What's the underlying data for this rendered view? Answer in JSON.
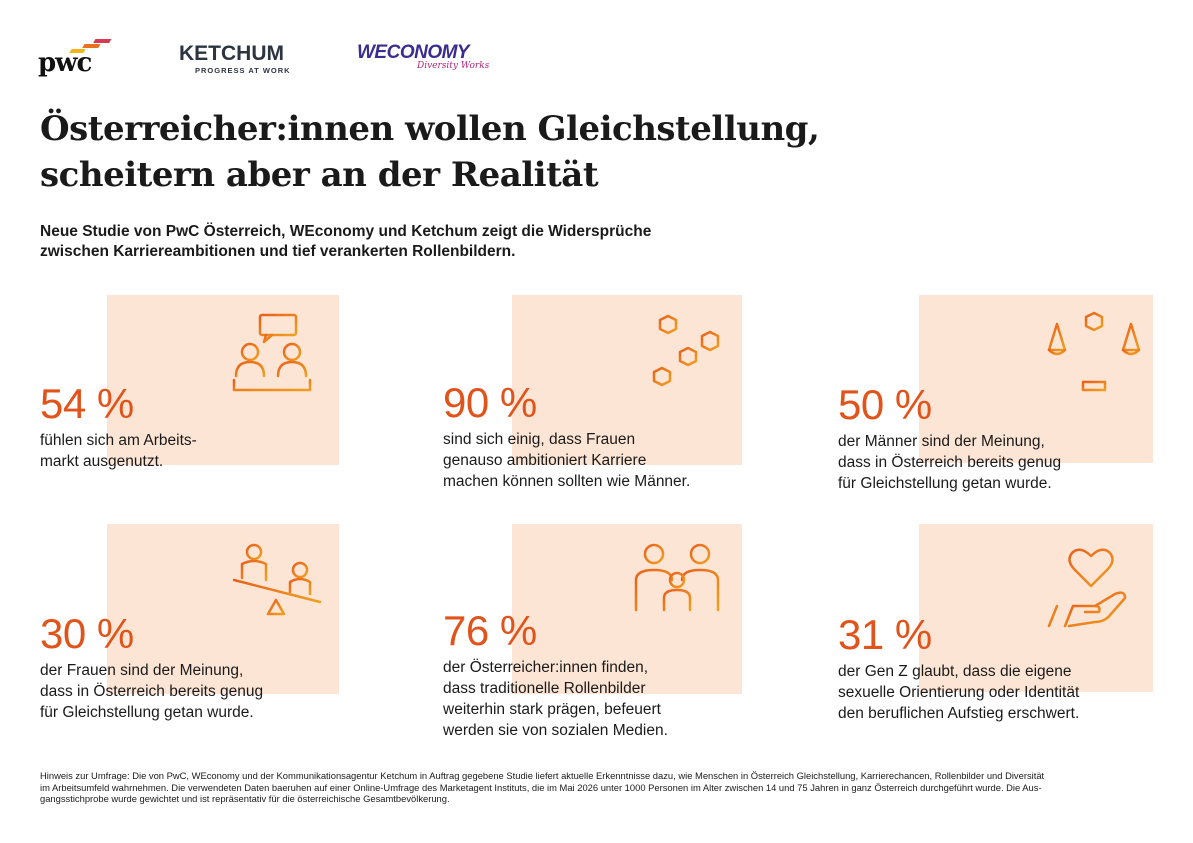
{
  "logos": {
    "pwc": {
      "text": "pwc"
    },
    "ketchum": {
      "text": "KETCHUM",
      "tagline": "PROGRESS AT WORK"
    },
    "weconomy": {
      "text": "WECONOMY",
      "tagline": "Diversity Works"
    }
  },
  "title": {
    "line1": "Österreicher:innen wollen Gleichstellung,",
    "line2": "scheitern aber an der Realität"
  },
  "subtitle": {
    "line1": "Neue Studie von PwC Österreich, WEconomy und Ketchum zeigt die Widersprüche",
    "line2": "zwischen Karriereambitionen und tief verankerten Rollenbildern."
  },
  "stats": [
    {
      "value": "54 %",
      "lines": [
        "fühlen sich am Arbeits-",
        "markt ausgenutzt."
      ],
      "icon": "meeting-icon"
    },
    {
      "value": "90 %",
      "lines": [
        "sind sich einig, dass Frauen",
        "genauso ambitioniert Karriere",
        "machen können sollten wie Männer."
      ],
      "icon": "hexagon-network-icon"
    },
    {
      "value": "50 %",
      "lines": [
        "der Männer sind der Meinung,",
        "dass in Österreich bereits genug",
        "für Gleichstellung getan wurde."
      ],
      "icon": "balance-scale-icon"
    },
    {
      "value": "30 %",
      "lines": [
        "der Frauen sind der Meinung,",
        "dass in Österreich bereits genug",
        "für Gleichstellung getan wurde."
      ],
      "icon": "seesaw-icon"
    },
    {
      "value": "76 %",
      "lines": [
        "der Österreicher:innen finden,",
        "dass traditionelle Rollenbilder",
        "weiterhin stark prägen, befeuert",
        "werden sie von sozialen Medien."
      ],
      "icon": "family-icon"
    },
    {
      "value": "31 %",
      "lines": [
        "der Gen Z glaubt, dass die eigene",
        "sexuelle Orientierung oder Identität",
        "den beruflichen Aufstieg erschwert."
      ],
      "icon": "heart-hand-icon"
    }
  ],
  "footnote": {
    "line1": "Hinweis zur Umfrage: Die von PwC, WEconomy und der Kommunikationsagentur Ketchum in Auftrag gegebene Studie liefert aktuelle Erkenntnisse dazu, wie Menschen in Österreich Gleichstellung, Karrierechancen, Rollenbilder und Diversität",
    "line2": "im Arbeitsumfeld wahrnehmen. Die verwendeten Daten baeruhen auf einer Online-Umfrage des Marketagent Instituts, die im Mai 2026 unter 1000 Personen im Alter zwischen 14 und 75 Jahren in ganz Österreich durchgeführt wurde. Die Aus-",
    "line3": "gangsstichprobe wurde gewichtet und ist repräsentativ für die österreichische Gesamtbevölkerung."
  },
  "colors": {
    "accent": "#e0541b",
    "peach": "#fde5d5",
    "icon_orange": "#e8701e"
  }
}
